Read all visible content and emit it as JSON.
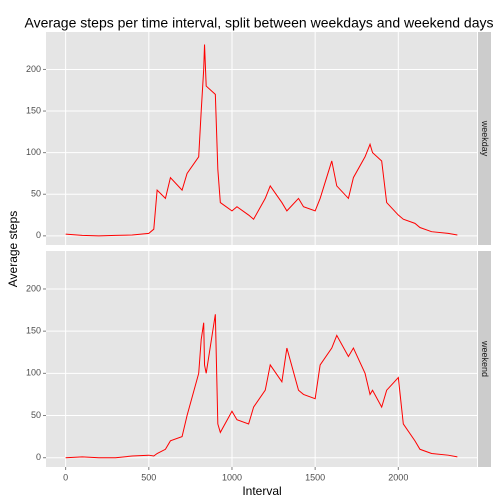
{
  "chart_data": {
    "type": "line",
    "title": "Average steps per time interval, split between weekdays and weekend days",
    "x_label": "Interval",
    "y_label": "Average steps",
    "x": [
      0,
      100,
      200,
      300,
      400,
      500,
      530,
      550,
      600,
      630,
      700,
      730,
      800,
      815,
      830,
      835,
      845,
      900,
      915,
      930,
      1000,
      1030,
      1100,
      1130,
      1200,
      1230,
      1300,
      1330,
      1400,
      1430,
      1500,
      1530,
      1600,
      1630,
      1700,
      1730,
      1800,
      1830,
      1845,
      1900,
      1930,
      2000,
      2030,
      2100,
      2130,
      2200,
      2300,
      2355
    ],
    "series": [
      {
        "name": "weekday",
        "color": "#ff0000",
        "values": [
          2,
          0.5,
          0,
          0.5,
          1,
          3,
          8,
          55,
          45,
          70,
          55,
          75,
          95,
          150,
          200,
          230,
          180,
          170,
          80,
          40,
          30,
          35,
          25,
          20,
          45,
          60,
          40,
          30,
          45,
          35,
          30,
          45,
          90,
          60,
          45,
          70,
          95,
          110,
          100,
          90,
          40,
          25,
          20,
          15,
          10,
          5,
          3,
          1
        ]
      },
      {
        "name": "weekend",
        "color": "#ff0000",
        "values": [
          0,
          1,
          0,
          0,
          2,
          3,
          2,
          5,
          10,
          20,
          25,
          50,
          100,
          140,
          160,
          110,
          100,
          170,
          40,
          30,
          55,
          45,
          40,
          60,
          80,
          110,
          90,
          130,
          80,
          75,
          70,
          110,
          130,
          145,
          120,
          130,
          100,
          75,
          80,
          60,
          80,
          95,
          40,
          20,
          10,
          5,
          3,
          1
        ]
      }
    ],
    "xlim": [
      -118,
      2473
    ],
    "xticks": [
      0,
      500,
      1000,
      1500,
      2000
    ],
    "ylim": [
      -11,
      245
    ],
    "yticks": [
      0,
      50,
      100,
      150,
      200
    ],
    "grid": true
  }
}
